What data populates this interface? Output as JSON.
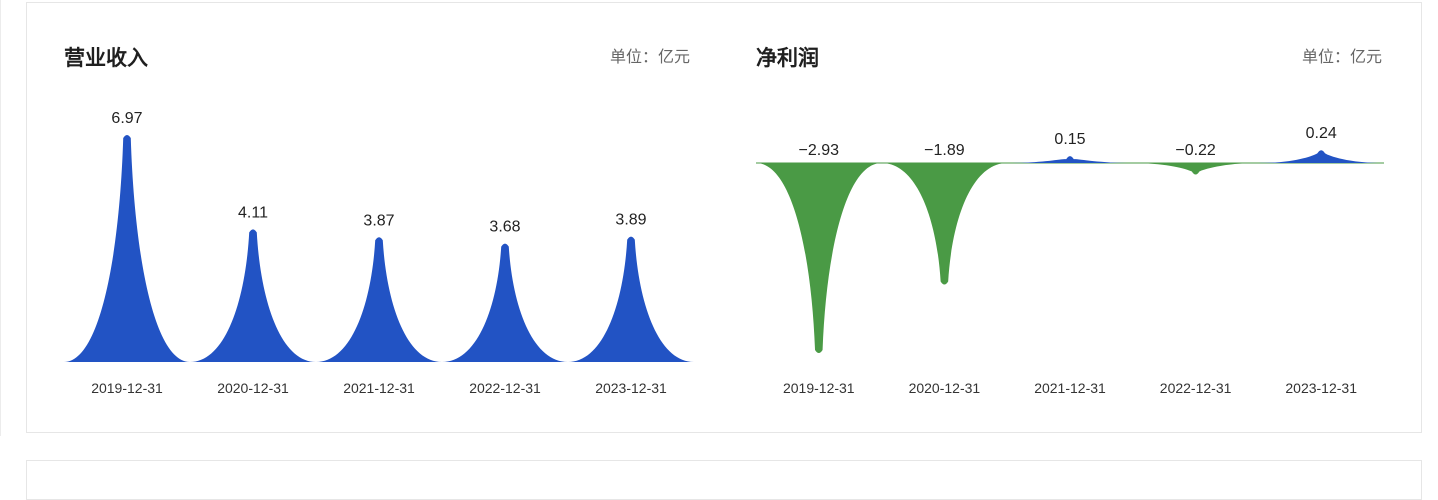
{
  "panels": [
    {
      "title": "营业收入",
      "unit_label": "单位：亿元",
      "chart_data": {
        "type": "area",
        "categories": [
          "2019-12-31",
          "2020-12-31",
          "2021-12-31",
          "2022-12-31",
          "2023-12-31"
        ],
        "values": [
          6.97,
          4.11,
          3.87,
          3.68,
          3.89
        ],
        "value_labels": [
          "6.97",
          "4.11",
          "3.87",
          "3.68",
          "3.89"
        ],
        "ylim": [
          0,
          6.97
        ],
        "positive_color": "#2253c4",
        "negative_color": "#4a9a45",
        "grid": false,
        "legend": "none"
      }
    },
    {
      "title": "净利润",
      "unit_label": "单位：亿元",
      "chart_data": {
        "type": "area",
        "categories": [
          "2019-12-31",
          "2020-12-31",
          "2021-12-31",
          "2022-12-31",
          "2023-12-31"
        ],
        "values": [
          -2.93,
          -1.89,
          0.15,
          -0.22,
          0.24
        ],
        "value_labels": [
          "−2.93",
          "−1.89",
          "0.15",
          "−0.22",
          "0.24"
        ],
        "ylim": [
          -2.93,
          0.24
        ],
        "positive_color": "#2253c4",
        "negative_color": "#4a9a45",
        "grid": false,
        "legend": "none"
      }
    }
  ]
}
